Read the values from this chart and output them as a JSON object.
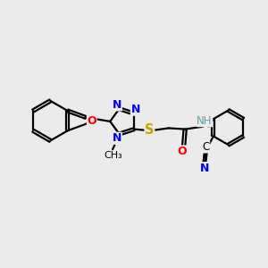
{
  "bg_color": "#ebebeb",
  "bond_color": "#000000",
  "atom_colors": {
    "N": "#0000ff",
    "O": "#ff0000",
    "S": "#bbaa00",
    "H": "#5f9ea0",
    "C": "#000000"
  },
  "figsize": [
    3.0,
    3.0
  ],
  "dpi": 100
}
